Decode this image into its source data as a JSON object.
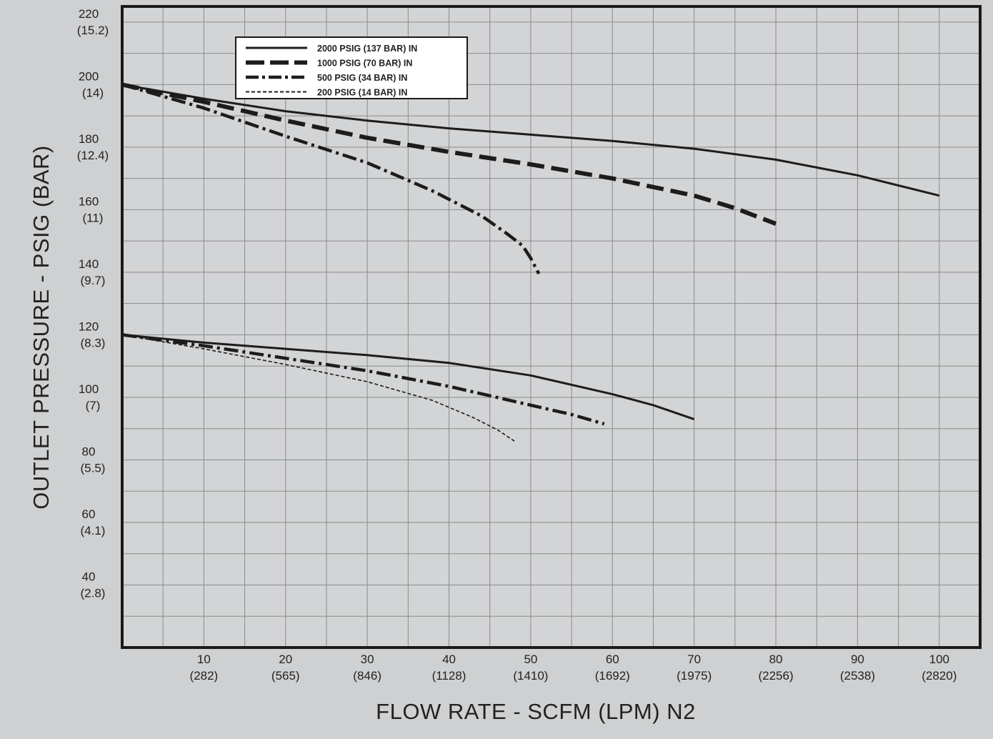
{
  "chart_data": {
    "type": "line",
    "xlabel": "FLOW RATE - SCFM (LPM) N2",
    "ylabel": "OUTLET PRESSURE - PSIG (BAR)",
    "xlim": [
      0,
      105
    ],
    "ylim": [
      20,
      225
    ],
    "grid": true,
    "legend_position": "top-left",
    "x_ticks": [
      {
        "value": 10,
        "label": "10",
        "sub": "(282)"
      },
      {
        "value": 20,
        "label": "20",
        "sub": "(565)"
      },
      {
        "value": 30,
        "label": "30",
        "sub": "(846)"
      },
      {
        "value": 40,
        "label": "40",
        "sub": "(1128)"
      },
      {
        "value": 50,
        "label": "50",
        "sub": "(1410)"
      },
      {
        "value": 60,
        "label": "60",
        "sub": "(1692)"
      },
      {
        "value": 70,
        "label": "70",
        "sub": "(1975)"
      },
      {
        "value": 80,
        "label": "80",
        "sub": "(2256)"
      },
      {
        "value": 90,
        "label": "90",
        "sub": "(2538)"
      },
      {
        "value": 100,
        "label": "100",
        "sub": "(2820)"
      }
    ],
    "y_ticks": [
      {
        "value": 40,
        "label": "40",
        "sub": "(2.8)"
      },
      {
        "value": 60,
        "label": "60",
        "sub": "(4.1)"
      },
      {
        "value": 80,
        "label": "80",
        "sub": "(5.5)"
      },
      {
        "value": 100,
        "label": "100",
        "sub": "(7)"
      },
      {
        "value": 120,
        "label": "120",
        "sub": "(8.3)"
      },
      {
        "value": 140,
        "label": "140",
        "sub": "(9.7)"
      },
      {
        "value": 160,
        "label": "160",
        "sub": "(11)"
      },
      {
        "value": 180,
        "label": "180",
        "sub": "(12.4)"
      },
      {
        "value": 200,
        "label": "200",
        "sub": "(14)"
      },
      {
        "value": 220,
        "label": "220",
        "sub": "(15.2)"
      }
    ],
    "legend": [
      {
        "name": "2000 PSIG (137 BAR) IN",
        "style": "solid"
      },
      {
        "name": "1000 PSIG (70 BAR) IN",
        "style": "dash"
      },
      {
        "name": "500 PSIG (34 BAR) IN",
        "style": "dashdot"
      },
      {
        "name": "200 PSIG (14 BAR) IN",
        "style": "dotted"
      }
    ],
    "series": [
      {
        "name": "2000 PSIG (137 BAR) IN",
        "setpoint": 200,
        "style": "solid",
        "points": [
          [
            0,
            200
          ],
          [
            10,
            195.5
          ],
          [
            20,
            191.5
          ],
          [
            30,
            188.5
          ],
          [
            40,
            186
          ],
          [
            50,
            184
          ],
          [
            60,
            182
          ],
          [
            70,
            179.5
          ],
          [
            80,
            176
          ],
          [
            90,
            171
          ],
          [
            100,
            164.5
          ]
        ]
      },
      {
        "name": "1000 PSIG (70 BAR) IN",
        "setpoint": 200,
        "style": "dash",
        "points": [
          [
            0,
            200
          ],
          [
            10,
            194.5
          ],
          [
            20,
            188.5
          ],
          [
            30,
            183
          ],
          [
            40,
            178.5
          ],
          [
            50,
            174.5
          ],
          [
            60,
            170
          ],
          [
            70,
            164.5
          ],
          [
            75,
            160.5
          ],
          [
            80,
            155.5
          ]
        ]
      },
      {
        "name": "500 PSIG (34 BAR) IN",
        "setpoint": 200,
        "style": "dashdot",
        "points": [
          [
            0,
            200
          ],
          [
            10,
            192.5
          ],
          [
            20,
            183.5
          ],
          [
            30,
            175
          ],
          [
            38,
            166
          ],
          [
            44,
            158
          ],
          [
            47,
            152.5
          ],
          [
            49,
            148.5
          ],
          [
            50,
            144.5
          ],
          [
            51,
            139.5
          ]
        ]
      },
      {
        "name": "2000 PSIG (137 BAR) IN",
        "setpoint": 120,
        "style": "solid",
        "points": [
          [
            0,
            120
          ],
          [
            10,
            117.5
          ],
          [
            20,
            115.5
          ],
          [
            30,
            113.5
          ],
          [
            40,
            111
          ],
          [
            50,
            107
          ],
          [
            60,
            101
          ],
          [
            65,
            97.5
          ],
          [
            70,
            93
          ]
        ]
      },
      {
        "name": "500 PSIG (34 BAR) IN",
        "setpoint": 120,
        "style": "dashdot",
        "points": [
          [
            0,
            120
          ],
          [
            10,
            116.5
          ],
          [
            20,
            112.5
          ],
          [
            30,
            108.5
          ],
          [
            40,
            103.5
          ],
          [
            50,
            97.5
          ],
          [
            55,
            94.5
          ],
          [
            59,
            91.5
          ]
        ]
      },
      {
        "name": "200 PSIG (14 BAR) IN",
        "setpoint": 120,
        "style": "dotted",
        "points": [
          [
            0,
            120
          ],
          [
            10,
            115.5
          ],
          [
            20,
            110.5
          ],
          [
            30,
            105
          ],
          [
            38,
            99
          ],
          [
            43,
            93.5
          ],
          [
            46,
            89.5
          ],
          [
            48,
            86
          ]
        ]
      }
    ]
  }
}
